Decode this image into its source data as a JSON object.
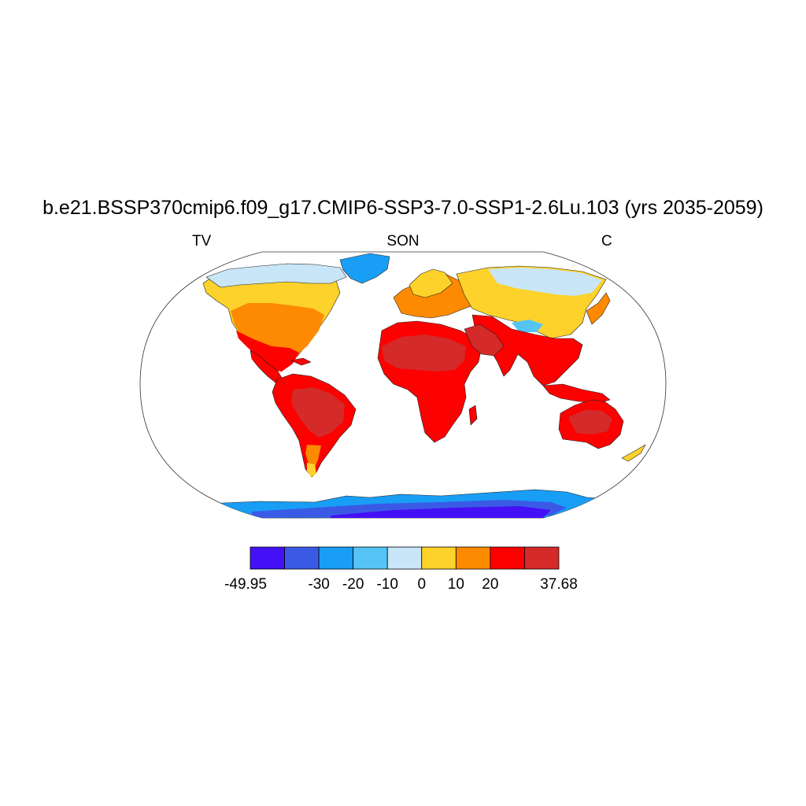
{
  "title": "b.e21.BSSP370cmip6.f09_g17.CMIP6-SSP3-7.0-SSP1-2.6Lu.103 (yrs 2035-2059)",
  "left_label": "TV",
  "center_label": "SON",
  "right_label": "C",
  "projection": "robinson",
  "colorbar": {
    "colors": [
      "#4410f5",
      "#3a5ae6",
      "#189ef5",
      "#55c4f5",
      "#c8e6f7",
      "#fdd22b",
      "#fd8a00",
      "#fd0000",
      "#d42a2a"
    ],
    "labels": [
      "-49.95",
      "-30",
      "-20",
      "-10",
      "0",
      "10",
      "20",
      "37.68"
    ]
  }
}
